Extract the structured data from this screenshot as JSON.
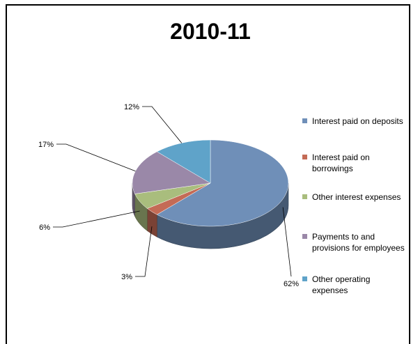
{
  "chart_data": {
    "type": "pie",
    "title": "2010-11",
    "categories": [
      "Interest paid on deposits",
      "Interest paid on borrowings",
      "Other interest expenses",
      "Payments to and provisions for employees",
      "Other operating expenses"
    ],
    "values": [
      62,
      3,
      6,
      17,
      12
    ],
    "data_labels": [
      "62%",
      "3%",
      "6%",
      "17%",
      "12%"
    ],
    "colors": [
      "#6f8fb8",
      "#c46b56",
      "#a9bd7d",
      "#9a88a8",
      "#5fa3c9"
    ],
    "legend_lines": [
      [
        "Interest paid on deposits"
      ],
      [
        "Interest paid on",
        "borrowings"
      ],
      [
        "Other interest expenses"
      ],
      [
        "Payments to and",
        "provisions for employees"
      ],
      [
        "Other operating",
        "expenses"
      ]
    ],
    "legend_position": "right",
    "style": "3d-pie"
  }
}
